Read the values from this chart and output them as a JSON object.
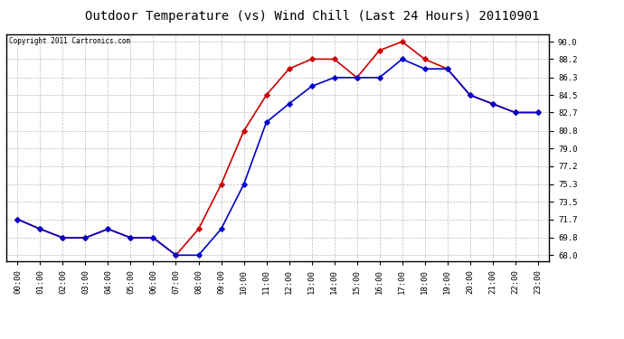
{
  "title": "Outdoor Temperature (vs) Wind Chill (Last 24 Hours) 20110901",
  "copyright": "Copyright 2011 Cartronics.com",
  "x_labels": [
    "00:00",
    "01:00",
    "02:00",
    "03:00",
    "04:00",
    "05:00",
    "06:00",
    "07:00",
    "08:00",
    "09:00",
    "10:00",
    "11:00",
    "12:00",
    "13:00",
    "14:00",
    "15:00",
    "16:00",
    "17:00",
    "18:00",
    "19:00",
    "20:00",
    "21:00",
    "22:00",
    "23:00"
  ],
  "temp_red": [
    71.7,
    70.7,
    69.8,
    69.8,
    70.7,
    69.8,
    69.8,
    68.0,
    70.7,
    75.3,
    80.8,
    84.5,
    87.2,
    88.2,
    88.2,
    86.3,
    89.1,
    90.0,
    88.2,
    87.2,
    84.5,
    83.6,
    82.7,
    82.7
  ],
  "wind_chill_blue": [
    71.7,
    70.7,
    69.8,
    69.8,
    70.7,
    69.8,
    69.8,
    68.0,
    68.0,
    70.7,
    75.3,
    81.7,
    83.6,
    85.4,
    86.3,
    86.3,
    86.3,
    88.2,
    87.2,
    87.2,
    84.5,
    83.6,
    82.7,
    82.7
  ],
  "red_color": "#cc0000",
  "blue_color": "#0000cc",
  "bg_color": "#ffffff",
  "plot_bg_color": "#ffffff",
  "grid_color": "#bbbbbb",
  "title_fontsize": 10,
  "copyright_fontsize": 5.5,
  "tick_fontsize": 6.5,
  "yticks": [
    68.0,
    69.8,
    71.7,
    73.5,
    75.3,
    77.2,
    79.0,
    80.8,
    82.7,
    84.5,
    86.3,
    88.2,
    90.0
  ],
  "ymin": 67.4,
  "ymax": 90.8
}
